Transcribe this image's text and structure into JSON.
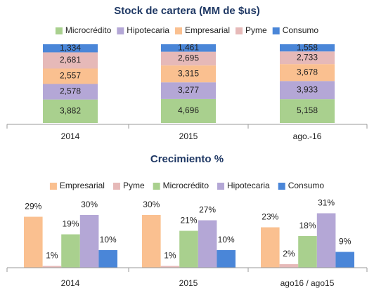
{
  "chart_data": [
    {
      "type": "stacked-bar",
      "stacking": "percent",
      "title": "Stock de cartera (MM de $us)",
      "categories": [
        "2014",
        "2015",
        "ago.-16"
      ],
      "series": [
        {
          "name": "Microcrédito",
          "color": "#a9d08e",
          "values": [
            3882,
            4696,
            5158
          ],
          "value_labels": [
            "3,882",
            "4,696",
            "5,158"
          ]
        },
        {
          "name": "Hipotecaria",
          "color": "#b4a7d6",
          "values": [
            2578,
            3277,
            3933
          ],
          "value_labels": [
            "2,578",
            "3,277",
            "3,933"
          ]
        },
        {
          "name": "Empresarial",
          "color": "#fac090",
          "values": [
            2557,
            3315,
            3678
          ],
          "value_labels": [
            "2,557",
            "3,315",
            "3,678"
          ]
        },
        {
          "name": "Pyme",
          "color": "#e6b9b8",
          "values": [
            2681,
            2695,
            2733
          ],
          "value_labels": [
            "2,681",
            "2,695",
            "2,733"
          ]
        },
        {
          "name": "Consumo",
          "color": "#4a86d8",
          "values": [
            1334,
            1461,
            1558
          ],
          "value_labels": [
            "1,334",
            "1,461",
            "1,558"
          ]
        }
      ],
      "legend": "top"
    },
    {
      "type": "grouped-bar",
      "title": "Crecimiento %",
      "categories": [
        "2014",
        "2015",
        "ago16 / ago15"
      ],
      "series": [
        {
          "name": "Empresarial",
          "color": "#fac090",
          "values": [
            29,
            30,
            23
          ],
          "value_labels": [
            "29%",
            "30%",
            "23%"
          ]
        },
        {
          "name": "Pyme",
          "color": "#e6b9b8",
          "values": [
            1,
            1,
            2
          ],
          "value_labels": [
            "1%",
            "1%",
            "2%"
          ]
        },
        {
          "name": "Microcrédito",
          "color": "#a9d08e",
          "values": [
            19,
            21,
            18
          ],
          "value_labels": [
            "19%",
            "21%",
            "18%"
          ]
        },
        {
          "name": "Hipotecaria",
          "color": "#b4a7d6",
          "values": [
            30,
            27,
            31
          ],
          "value_labels": [
            "30%",
            "27%",
            "31%"
          ]
        },
        {
          "name": "Consumo",
          "color": "#4a86d8",
          "values": [
            10,
            10,
            9
          ],
          "value_labels": [
            "10%",
            "10%",
            "9%"
          ]
        }
      ],
      "legend": "top"
    }
  ]
}
